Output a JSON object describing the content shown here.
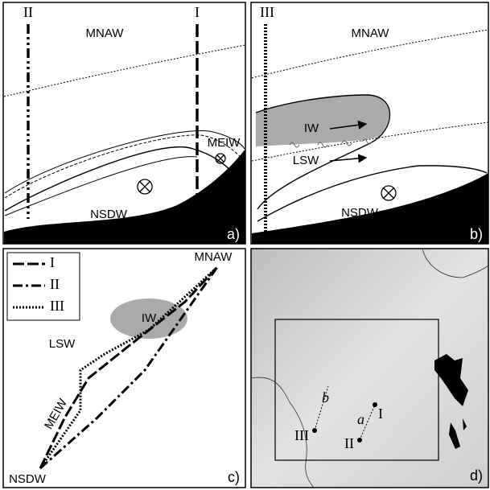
{
  "panel_a": {
    "sections": [
      "II",
      "I"
    ],
    "water_masses": [
      "MNAW",
      "MEIW",
      "NSDW"
    ],
    "tag": "a)"
  },
  "panel_b": {
    "sections": [
      "III"
    ],
    "water_masses": [
      "MNAW",
      "IW",
      "LSW",
      "NSDW"
    ],
    "tag": "b)"
  },
  "panel_c": {
    "legend": [
      "I",
      "II",
      "III"
    ],
    "water_masses": [
      "MNAW",
      "IW",
      "LSW",
      "MEIW",
      "NSDW"
    ],
    "tag": "c)"
  },
  "panel_d": {
    "section_tags": [
      "b",
      "a"
    ],
    "stations": [
      "I",
      "III",
      "II"
    ],
    "tag": "d)"
  }
}
